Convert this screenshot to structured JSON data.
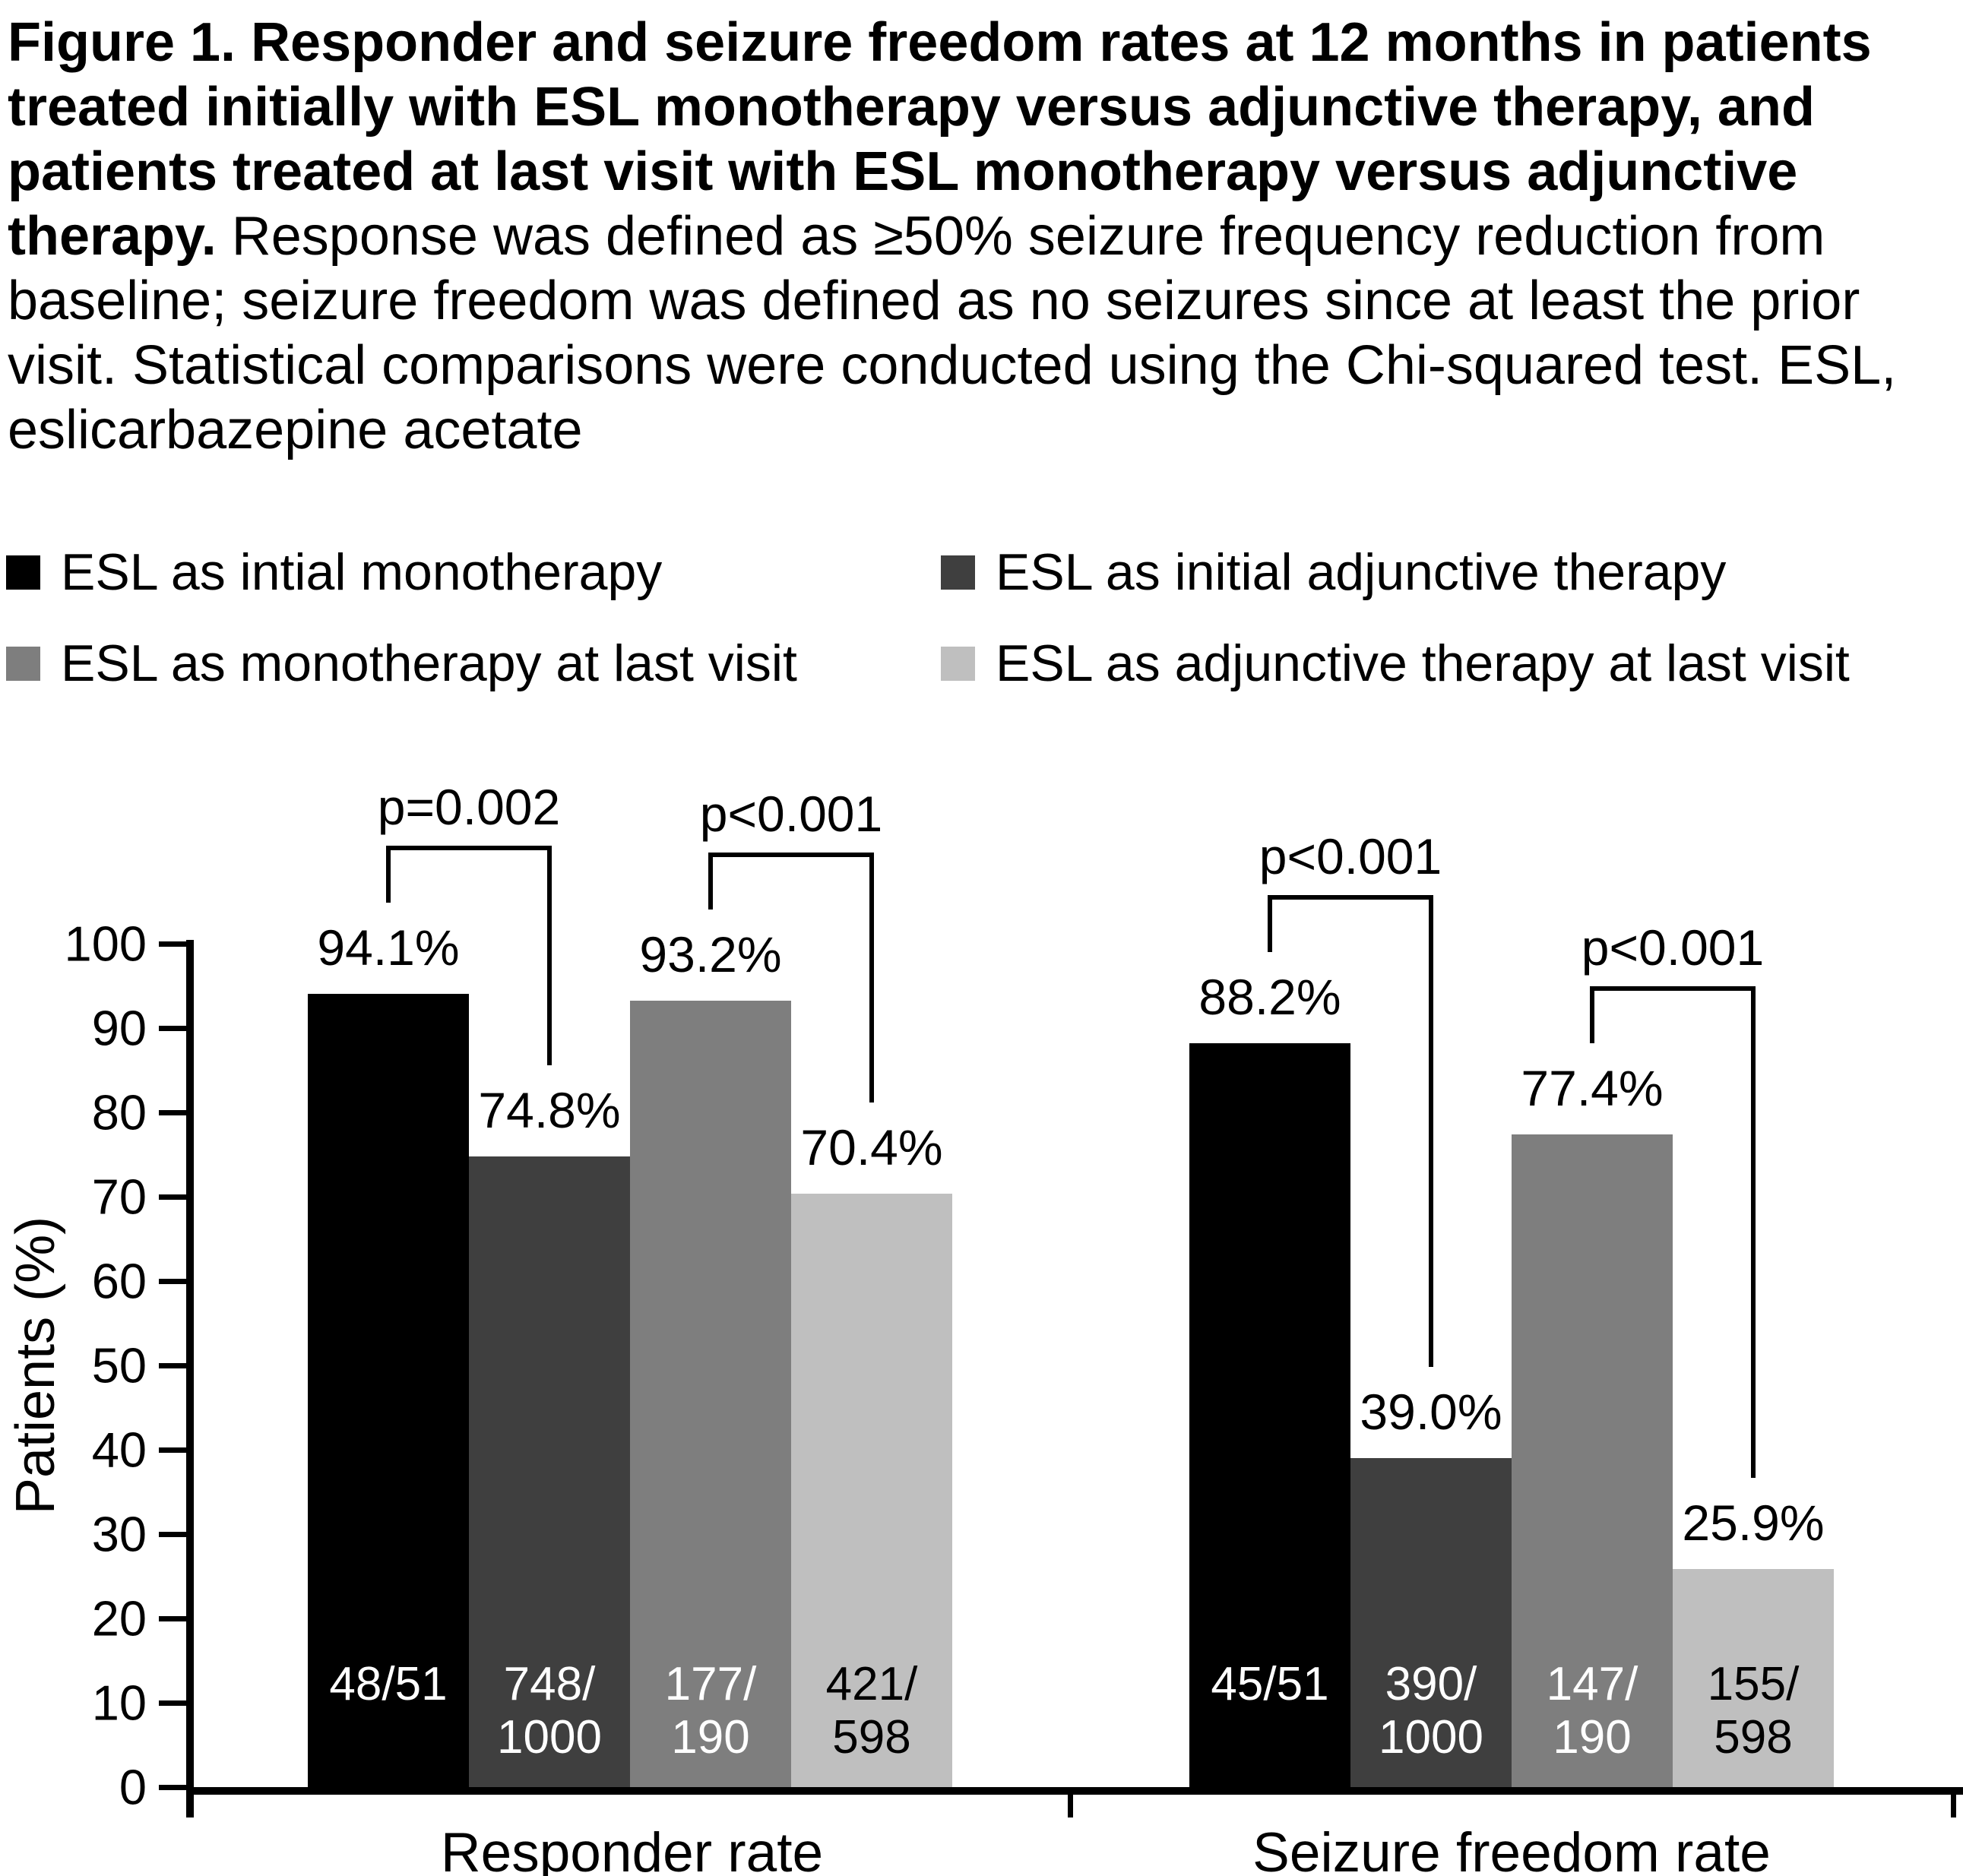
{
  "figure": {
    "caption_bold": "Figure 1. Responder and seizure freedom rates at 12 months in patients treated initially with ESL monotherapy versus adjunctive therapy, and patients treated at last visit with ESL monotherapy versus adjunctive therapy.",
    "caption_regular": " Response was defined as ≥50% seizure frequency reduction from baseline; seizure freedom was defined as no seizures since at least the prior visit. Statistical comparisons were conducted using the Chi-squared test. ESL, eslicarbazepine acetate"
  },
  "legend": {
    "position": "top",
    "items": [
      {
        "label": "ESL as intial monotherapy",
        "color": "#000000"
      },
      {
        "label": "ESL as initial adjunctive therapy",
        "color": "#3F3F3F"
      },
      {
        "label": "ESL as monotherapy at last visit",
        "color": "#7E7E7E"
      },
      {
        "label": "ESL as adjunctive therapy at last visit",
        "color": "#BFBFBF"
      }
    ]
  },
  "chart_data": {
    "type": "bar",
    "title": "",
    "xlabel": "",
    "ylabel": "Patients (%)",
    "ylim": [
      0,
      100
    ],
    "yticks": [
      0,
      10,
      20,
      30,
      40,
      50,
      60,
      70,
      80,
      90,
      100
    ],
    "grid": false,
    "value_suffix": "%",
    "categories": [
      "Responder rate",
      "Seizure freedom rate"
    ],
    "series": [
      {
        "name": "ESL as intial monotherapy",
        "color": "#000000",
        "label_color": "#FFFFFF",
        "values": [
          94.1,
          88.2
        ],
        "counts": [
          "48/51",
          "45/51"
        ]
      },
      {
        "name": "ESL as initial adjunctive therapy",
        "color": "#3F3F3F",
        "label_color": "#FFFFFF",
        "values": [
          74.8,
          39.0
        ],
        "counts": [
          "748/\n1000",
          "390/\n1000"
        ]
      },
      {
        "name": "ESL as monotherapy at last visit",
        "color": "#7E7E7E",
        "label_color": "#FFFFFF",
        "values": [
          93.2,
          77.4
        ],
        "counts": [
          "177/\n190",
          "147/\n190"
        ]
      },
      {
        "name": "ESL as adjunctive therapy at last visit",
        "color": "#BFBFBF",
        "label_color": "#000000",
        "values": [
          70.4,
          25.9
        ],
        "counts": [
          "421/\n598",
          "155/\n598"
        ]
      }
    ],
    "comparisons": [
      {
        "category": 0,
        "between": [
          0,
          1
        ],
        "label": "p=0.002"
      },
      {
        "category": 0,
        "between": [
          2,
          3
        ],
        "label": "p<0.001"
      },
      {
        "category": 1,
        "between": [
          0,
          1
        ],
        "label": "p<0.001"
      },
      {
        "category": 1,
        "between": [
          2,
          3
        ],
        "label": "p<0.001"
      }
    ]
  }
}
